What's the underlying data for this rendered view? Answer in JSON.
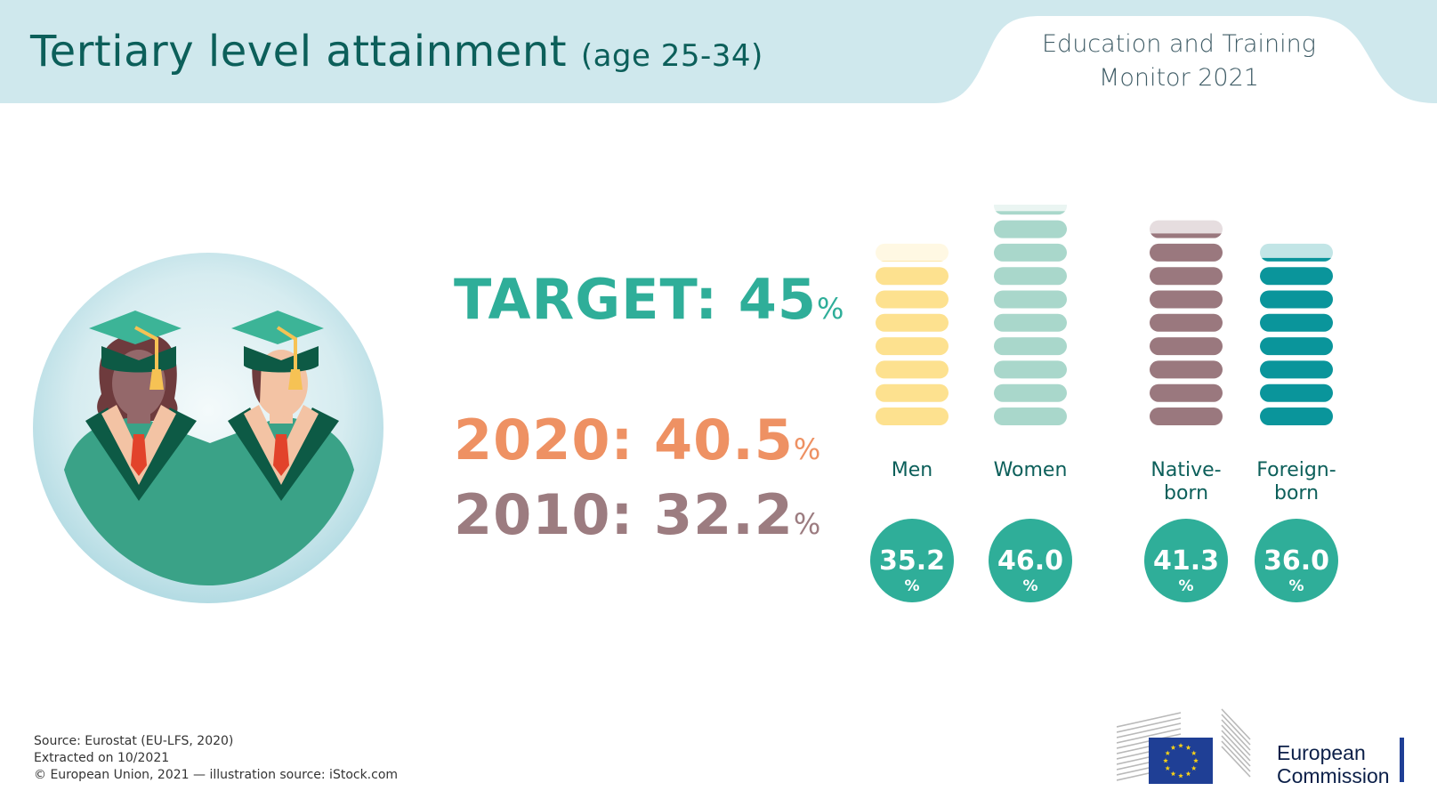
{
  "header": {
    "title_main": "Tertiary level attainment",
    "title_sub": "(age 25-34)",
    "monitor_line1": "Education and Training",
    "monitor_line2": "Monitor 2021"
  },
  "stats": {
    "target_label": "TARGET: 45",
    "y2020_label": "2020: 40.5",
    "y2010_label": "2010: 32.2",
    "pct_symbol": "%"
  },
  "chart_data": {
    "type": "bar",
    "categories": [
      "Men",
      "Women",
      "Native-born",
      "Foreign-born"
    ],
    "category_lines": [
      [
        "Men"
      ],
      [
        "Women"
      ],
      [
        "Native-",
        "born"
      ],
      [
        "Foreign-",
        "born"
      ]
    ],
    "values": [
      35.2,
      46.0,
      41.3,
      36.0
    ],
    "value_labels": [
      "35.2",
      "46.0",
      "41.3",
      "36.0"
    ],
    "unit": "%",
    "colors": [
      "#fde18f",
      "#a9d7cb",
      "#9a787e",
      "#0a959b"
    ],
    "badge_color": "#2fae99",
    "segment_value": 5
  },
  "footer": {
    "source": "Source: Eurostat (EU-LFS, 2020)",
    "extracted": "Extracted on 10/2021",
    "copyright": "© European Union, 2021 — illustration source: iStock.com"
  },
  "logo": {
    "line1": "European",
    "line2": "Commission",
    "flag_color": "#1f3f95",
    "star_color": "#f7d117"
  }
}
